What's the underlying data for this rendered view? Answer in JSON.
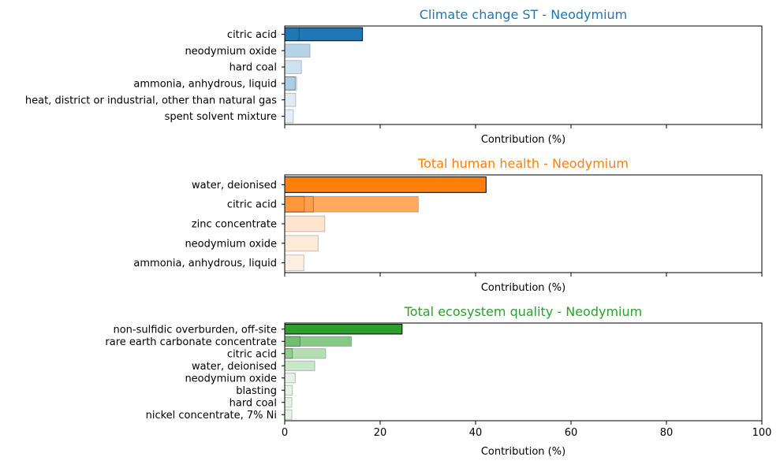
{
  "chart_data": [
    {
      "type": "bar",
      "orientation": "horizontal",
      "title": "Climate change ST - Neodymium",
      "title_color": "#1f77b4",
      "xlabel": "Contribution (%)",
      "show_x_tick_labels": false,
      "xlim": [
        0,
        100
      ],
      "x_ticks": [
        0,
        20,
        40,
        60,
        80,
        100
      ],
      "color": "#1f77b4",
      "categories": [
        "citric acid",
        "neodymium oxide",
        "hard coal",
        "ammonia, anhydrous, liquid",
        "heat, district or industrial, other than natural gas",
        "spent solvent mixture"
      ],
      "values": [
        16.3,
        5.3,
        3.5,
        2.5,
        2.3,
        1.8
      ],
      "overlay_values": [
        [
          3.0
        ],
        [],
        [],
        [
          2.2
        ],
        [],
        []
      ]
    },
    {
      "type": "bar",
      "orientation": "horizontal",
      "title": "Total human health - Neodymium",
      "title_color": "#ff7f0e",
      "xlabel": "Contribution (%)",
      "show_x_tick_labels": false,
      "xlim": [
        0,
        100
      ],
      "x_ticks": [
        0,
        20,
        40,
        60,
        80,
        100
      ],
      "color": "#ff7f0e",
      "categories": [
        "water, deionised",
        "citric acid",
        "zinc concentrate",
        "neodymium oxide",
        "ammonia, anhydrous, liquid"
      ],
      "values": [
        42.2,
        28.0,
        8.4,
        7.0,
        4.0
      ],
      "overlay_values": [
        [],
        [
          4.1,
          6.0
        ],
        [],
        [],
        []
      ]
    },
    {
      "type": "bar",
      "orientation": "horizontal",
      "title": "Total ecosystem quality - Neodymium",
      "title_color": "#2ca02c",
      "xlabel": "Contribution (%)",
      "show_x_tick_labels": true,
      "xlim": [
        0,
        100
      ],
      "x_ticks": [
        0,
        20,
        40,
        60,
        80,
        100
      ],
      "color": "#2ca02c",
      "categories": [
        "non-sulfidic overburden, off-site",
        "rare earth carbonate concentrate",
        "citric acid",
        "water, deionised",
        "neodymium oxide",
        "blasting",
        "hard coal",
        "nickel concentrate, 7% Ni"
      ],
      "values": [
        24.6,
        14.0,
        8.6,
        6.3,
        2.2,
        1.6,
        1.5,
        1.5
      ],
      "overlay_values": [
        [],
        [
          3.2
        ],
        [
          1.6
        ],
        [],
        [],
        [],
        [],
        []
      ]
    }
  ]
}
